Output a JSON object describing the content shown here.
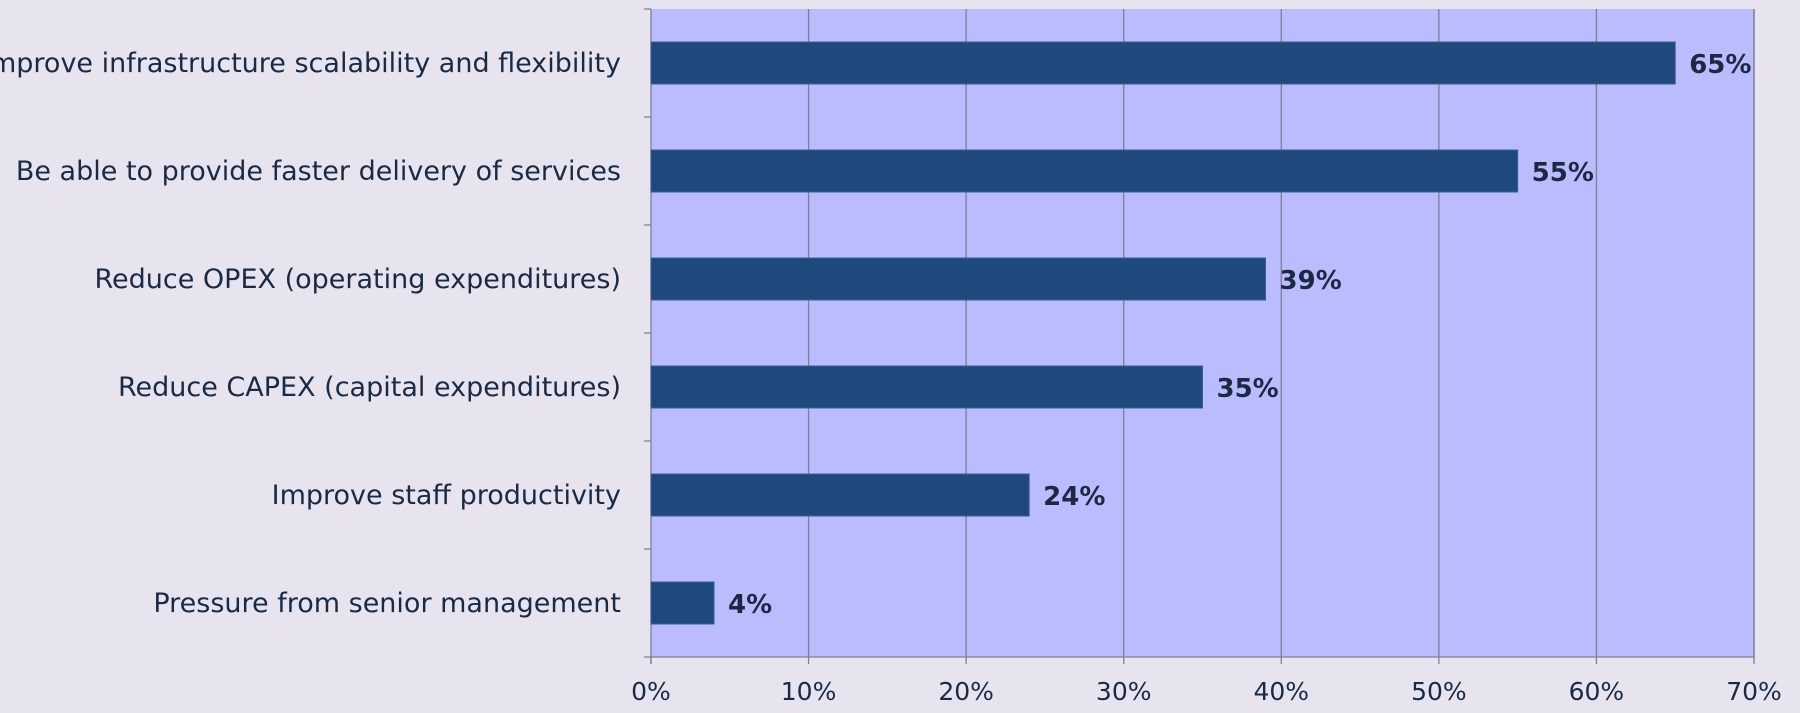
{
  "chart_data": {
    "type": "bar",
    "orientation": "horizontal",
    "categories": [
      "Improve infrastructure scalability and flexibility",
      "Be able to provide faster delivery of services",
      "Reduce OPEX (operating expenditures)",
      "Reduce CAPEX (capital expenditures)",
      "Improve staff productivity",
      "Pressure from senior management"
    ],
    "values": [
      65,
      55,
      39,
      35,
      24,
      4
    ],
    "value_labels": [
      "65%",
      "55%",
      "39%",
      "35%",
      "24%",
      "4%"
    ],
    "x_ticks": [
      "0%",
      "10%",
      "20%",
      "30%",
      "40%",
      "50%",
      "60%",
      "70%"
    ],
    "xlim": [
      0,
      70
    ],
    "title": "",
    "xlabel": "",
    "ylabel": "",
    "grid": "vertical",
    "legend": "none"
  },
  "colors": {
    "page_background": "#e8e4ef",
    "plot_background": "#babcfd",
    "bar_fill": "#1f497d",
    "gridline": "#7d7f97",
    "text": "#1a2a45"
  }
}
